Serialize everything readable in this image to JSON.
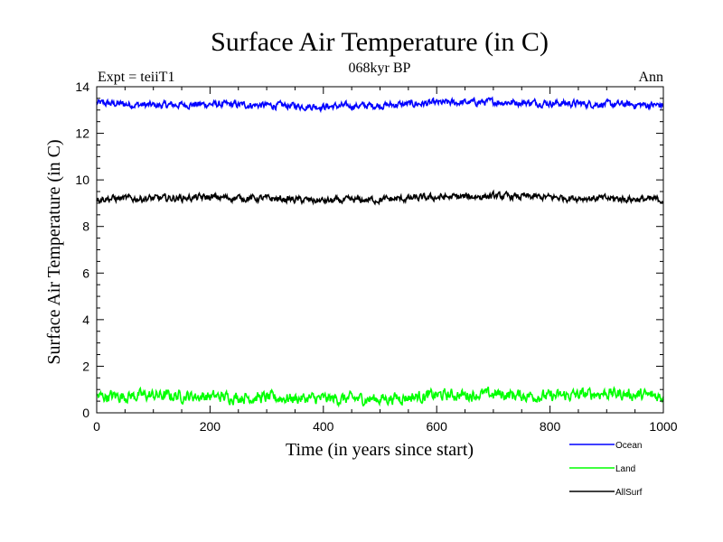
{
  "chart_data": {
    "type": "line",
    "title": "Surface Air Temperature (in C)",
    "subtitle": "068kyr BP",
    "left_label": "Expt = teiiT1",
    "right_label": "Ann",
    "xlabel": "Time (in years since start)",
    "ylabel": "Surface Air Temperature (in C)",
    "xlim": [
      0,
      1000
    ],
    "ylim": [
      0,
      14
    ],
    "xticks": [
      0,
      200,
      400,
      600,
      800,
      1000
    ],
    "yticks": [
      0,
      2,
      4,
      6,
      8,
      10,
      12,
      14
    ],
    "grid": false,
    "legend_position": "bottom-right, outside plot",
    "series": [
      {
        "name": "Ocean",
        "color": "#0000ff",
        "mean": 13.25,
        "noise": 0.12,
        "x": [
          0,
          100,
          200,
          300,
          400,
          500,
          600,
          700,
          800,
          900,
          1000
        ],
        "values": [
          13.3,
          13.2,
          13.25,
          13.2,
          13.15,
          13.2,
          13.3,
          13.35,
          13.3,
          13.25,
          13.2
        ]
      },
      {
        "name": "Land",
        "color": "#00ff00",
        "mean": 0.7,
        "noise": 0.2,
        "x": [
          0,
          100,
          200,
          300,
          400,
          500,
          600,
          700,
          800,
          900,
          1000
        ],
        "values": [
          0.7,
          0.75,
          0.7,
          0.65,
          0.6,
          0.6,
          0.75,
          0.8,
          0.7,
          0.85,
          0.7
        ]
      },
      {
        "name": "AllSurf",
        "color": "#000000",
        "mean": 9.2,
        "noise": 0.12,
        "x": [
          0,
          100,
          200,
          300,
          400,
          500,
          600,
          700,
          800,
          900,
          1000
        ],
        "values": [
          9.2,
          9.2,
          9.25,
          9.2,
          9.1,
          9.15,
          9.25,
          9.3,
          9.25,
          9.2,
          9.15
        ]
      }
    ]
  }
}
